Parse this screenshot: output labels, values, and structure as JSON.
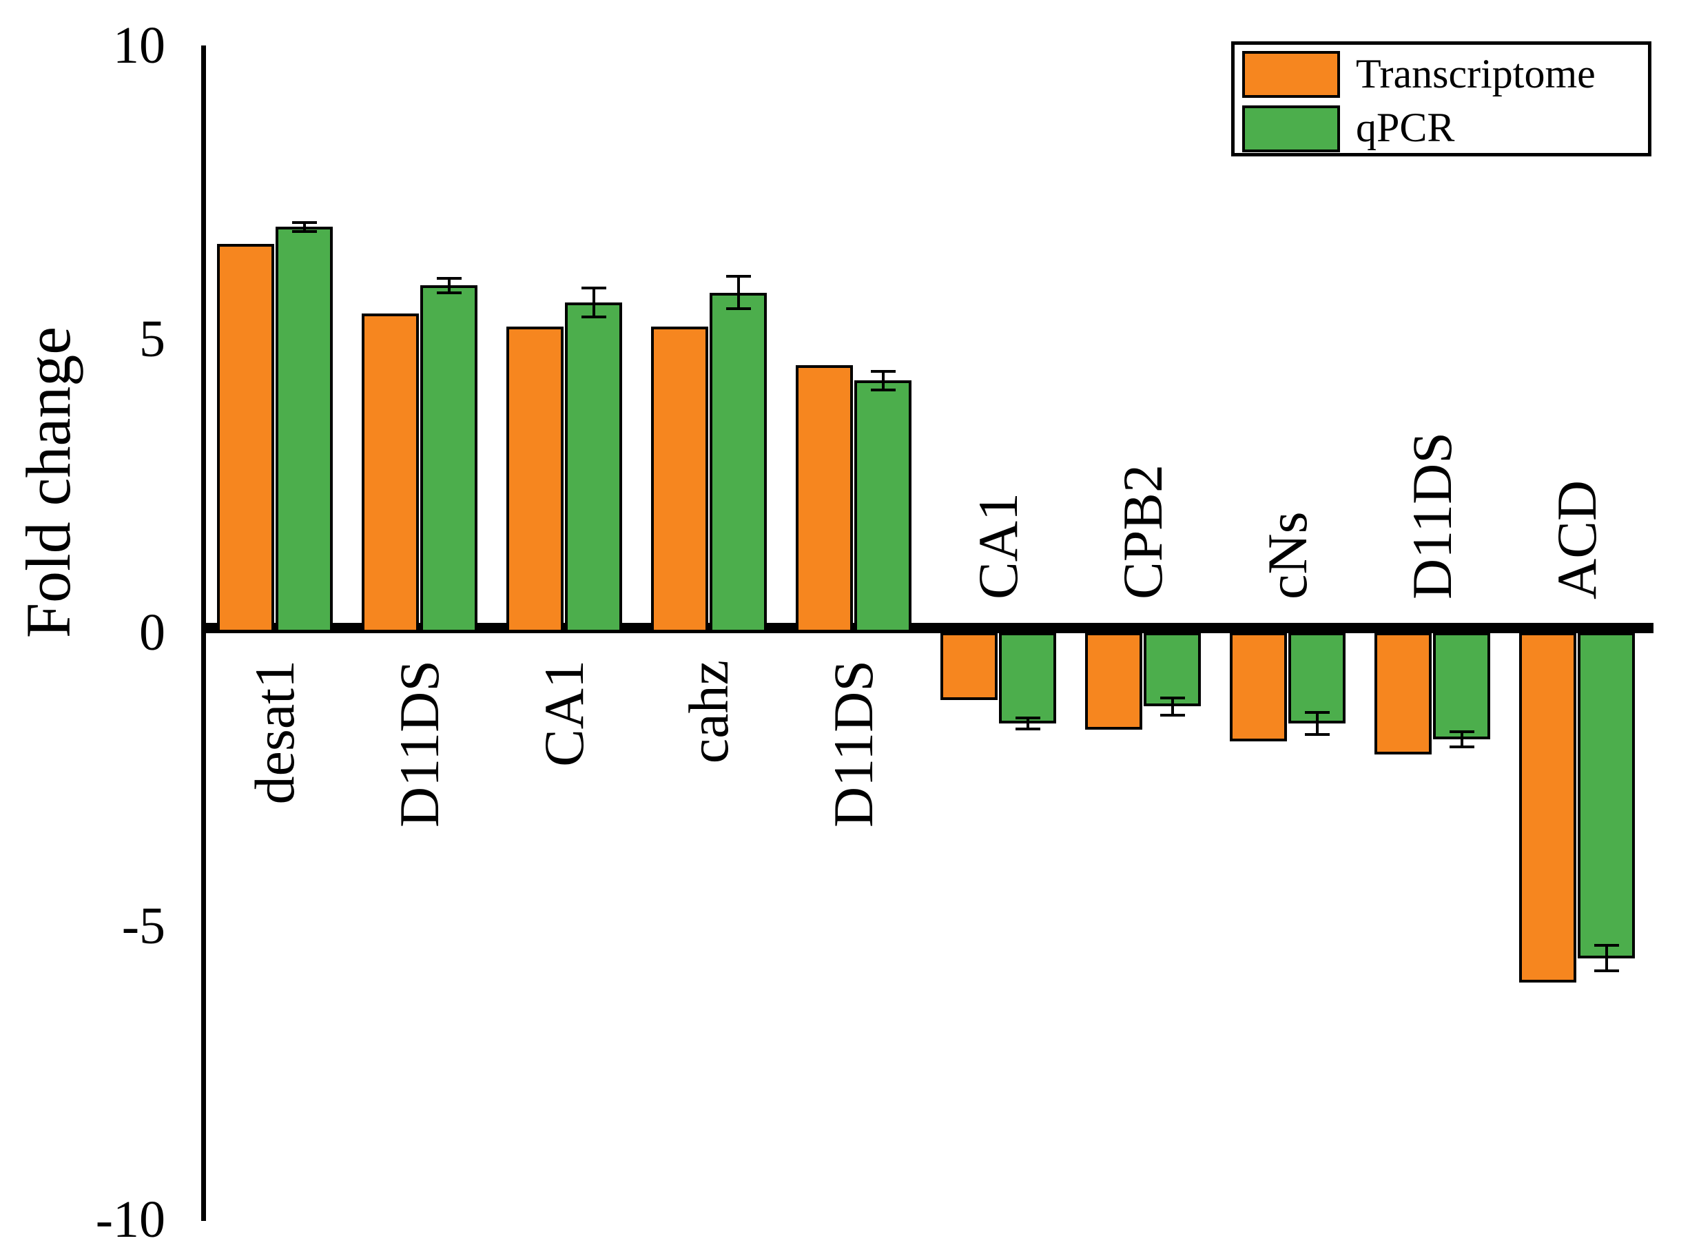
{
  "chart_data": {
    "type": "bar",
    "title": "",
    "xlabel": "",
    "ylabel": "Fold change",
    "ylim": [
      -10,
      10
    ],
    "yticks": [
      10,
      5,
      0,
      -5,
      -10
    ],
    "ytick_labels": [
      "10",
      "5",
      "0",
      "-5",
      "-10"
    ],
    "grid": false,
    "background_color": "#FFFFFF",
    "bar_border_color": "#000000",
    "legend_position": "top-right",
    "categories": [
      "desat1",
      "D11DS",
      "CA1",
      "cahz",
      "D11DS",
      "CA1",
      "CPB2",
      "cNs",
      "D11DS",
      "ACD"
    ],
    "category_label_side": [
      "below-axis",
      "below-axis",
      "below-axis",
      "below-axis",
      "below-axis",
      "above-axis",
      "above-axis",
      "above-axis",
      "above-axis",
      "above-axis"
    ],
    "series": [
      {
        "name": "Transcriptome",
        "color": "#F6861F",
        "values": [
          6.62,
          5.44,
          5.21,
          5.21,
          4.55,
          -1.15,
          -1.65,
          -1.86,
          -2.08,
          -5.96
        ]
      },
      {
        "name": "qPCR",
        "color": "#4CAE4C",
        "values": [
          6.91,
          5.91,
          5.62,
          5.79,
          4.29,
          -1.55,
          -1.26,
          -1.55,
          -1.82,
          -5.55
        ],
        "errors": [
          0.1,
          0.15,
          0.27,
          0.3,
          0.18,
          0.12,
          0.17,
          0.21,
          0.15,
          0.24
        ]
      }
    ]
  }
}
